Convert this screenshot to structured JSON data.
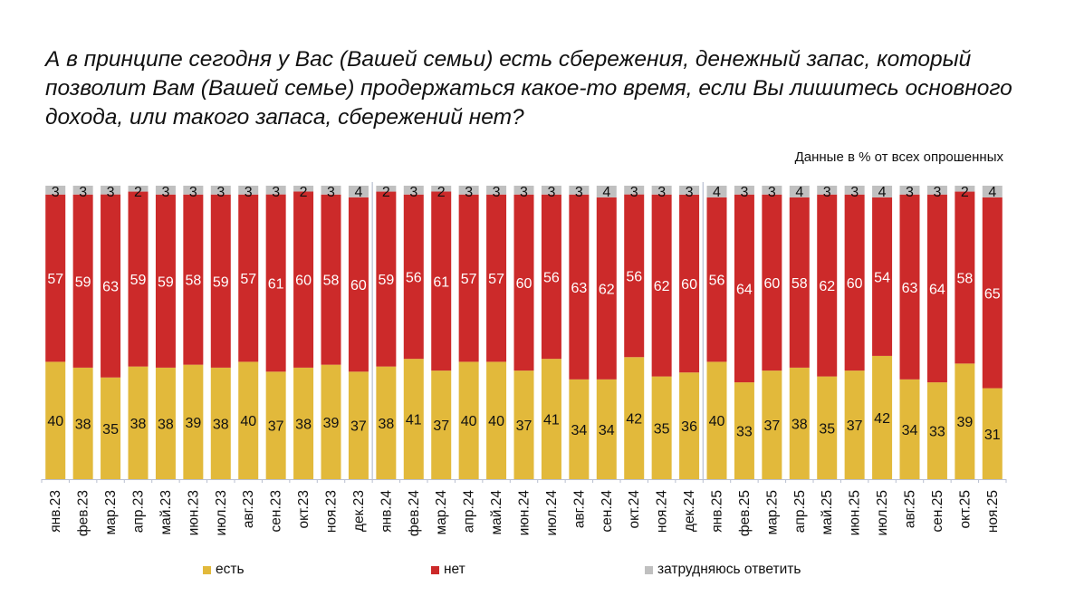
{
  "title": "А в принципе сегодня у Вас (Вашей семьи) есть сбережения, денежный запас, который позволит Вам (Вашей семье) продержаться какое-то время, если Вы лишитесь основного дохода, или такого запаса, сбережений нет?",
  "subtitle": "Данные в % от всех опрошенных",
  "legend": [
    {
      "key": "est",
      "label": "есть",
      "color": "#E2B93B"
    },
    {
      "key": "net",
      "label": "нет",
      "color": "#CC2A2A"
    },
    {
      "key": "zatr",
      "label": "затрудняюсь ответить",
      "color": "#C0C0C0"
    }
  ],
  "chart_data": {
    "type": "bar",
    "stacked": true,
    "percent_stacked": true,
    "title": "А в принципе сегодня у Вас (Вашей семьи) есть сбережения, денежный запас, который позволит Вам (Вашей семье) продержаться какое-то время, если Вы лишитесь основного дохода, или такого запаса, сбережений нет?",
    "subtitle": "Данные в % от всех опрошенных",
    "xlabel": "",
    "ylabel": "",
    "ylim": [
      0,
      100
    ],
    "grid": false,
    "legend_position": "bottom",
    "year_separators_after": [
      "дек.23",
      "дек.24"
    ],
    "categories": [
      "янв.23",
      "фев.23",
      "мар.23",
      "апр.23",
      "май.23",
      "июн.23",
      "июл.23",
      "авг.23",
      "сен.23",
      "окт.23",
      "ноя.23",
      "дек.23",
      "янв.24",
      "фев.24",
      "мар.24",
      "апр.24",
      "май.24",
      "июн.24",
      "июл.24",
      "авг.24",
      "сен.24",
      "окт.24",
      "ноя.24",
      "дек.24",
      "янв.25",
      "фев.25",
      "мар.25",
      "апр.25",
      "май.25",
      "июн.25",
      "июл.25",
      "авг.25",
      "сен.25",
      "окт.25",
      "ноя.25"
    ],
    "series": [
      {
        "name": "есть",
        "color": "#E2B93B",
        "label_color": "#111111",
        "values": [
          40,
          38,
          35,
          38,
          38,
          39,
          38,
          40,
          37,
          38,
          39,
          37,
          38,
          41,
          37,
          40,
          40,
          37,
          41,
          34,
          34,
          42,
          35,
          36,
          40,
          33,
          37,
          38,
          35,
          37,
          42,
          34,
          33,
          39,
          31
        ]
      },
      {
        "name": "нет",
        "color": "#CC2A2A",
        "label_color": "#FFFFFF",
        "values": [
          57,
          59,
          63,
          59,
          59,
          58,
          59,
          57,
          61,
          60,
          58,
          60,
          59,
          56,
          61,
          57,
          57,
          60,
          56,
          63,
          62,
          56,
          62,
          60,
          56,
          64,
          60,
          58,
          62,
          60,
          54,
          63,
          64,
          58,
          65
        ]
      },
      {
        "name": "затрудняюсь ответить",
        "color": "#C0C0C0",
        "label_color": "#111111",
        "values": [
          3,
          3,
          3,
          2,
          3,
          3,
          3,
          3,
          3,
          2,
          3,
          4,
          2,
          3,
          2,
          3,
          3,
          3,
          3,
          3,
          4,
          3,
          3,
          3,
          4,
          3,
          3,
          4,
          3,
          3,
          4,
          3,
          3,
          2,
          4
        ]
      }
    ]
  }
}
